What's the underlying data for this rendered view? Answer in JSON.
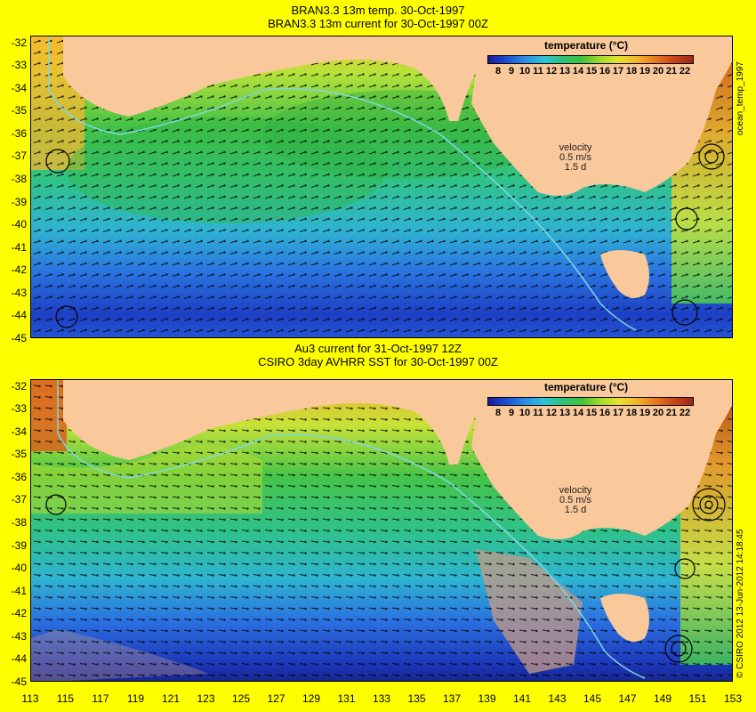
{
  "top_panel": {
    "title_line1": "BRAN3.3 13m temp. 30-Oct-1997",
    "title_line2": "BRAN3.3 13m current for 30-Oct-1997 00Z",
    "side_label": "ocean_temp_1997",
    "velocity": {
      "label": "velocity",
      "scale": "0.5 m/s",
      "sub": "1.5 d"
    },
    "legend_title": "temperature (°C)"
  },
  "bottom_panel": {
    "title_line1": "Au3 current for 31-Oct-1997 12Z",
    "title_line2": "CSIRO 3day AVHRR SST for 30-Oct-1997 00Z",
    "side_label": "© CSIRO 2012  13-Jun-2012 14:18:45",
    "velocity": {
      "label": "velocity",
      "scale": "0.5 m/s",
      "sub": "1.5 d"
    },
    "legend_title": "temperature (°C)"
  },
  "legend_ticks": [
    "8",
    "9",
    "10",
    "11",
    "12",
    "13",
    "14",
    "15",
    "16",
    "17",
    "18",
    "19",
    "20",
    "21",
    "22"
  ],
  "lat_ticks": [
    "-32",
    "-33",
    "-34",
    "-35",
    "-36",
    "-37",
    "-38",
    "-39",
    "-40",
    "-41",
    "-42",
    "-43",
    "-44",
    "-45"
  ],
  "lon_ticks": [
    "113",
    "115",
    "117",
    "119",
    "121",
    "123",
    "125",
    "127",
    "129",
    "131",
    "133",
    "135",
    "137",
    "139",
    "141",
    "143",
    "145",
    "147",
    "149",
    "151",
    "153"
  ],
  "colors": {
    "background": "#ffff00",
    "land": "#f9c89b",
    "isobath": "#7fd8e6",
    "arrows": "#000000"
  }
}
